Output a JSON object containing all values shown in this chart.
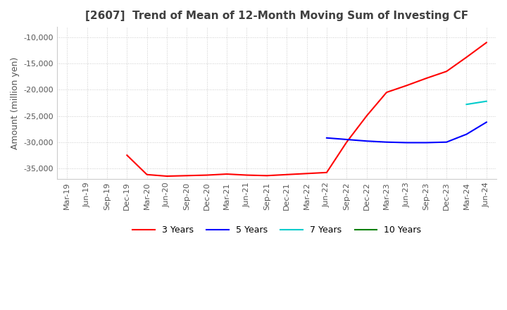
{
  "title": "[2607]  Trend of Mean of 12-Month Moving Sum of Investing CF",
  "ylabel": "Amount (million yen)",
  "ylim": [
    -37000,
    -8000
  ],
  "yticks": [
    -35000,
    -30000,
    -25000,
    -20000,
    -15000,
    -10000
  ],
  "legend_entries": [
    "3 Years",
    "5 Years",
    "7 Years",
    "10 Years"
  ],
  "legend_colors": [
    "#ff0000",
    "#0000ff",
    "#00cccc",
    "#008000"
  ],
  "xtick_labels": [
    "Mar-19",
    "Jun-19",
    "Sep-19",
    "Dec-19",
    "Mar-20",
    "Jun-20",
    "Sep-20",
    "Dec-20",
    "Mar-21",
    "Jun-21",
    "Sep-21",
    "Dec-21",
    "Mar-22",
    "Jun-22",
    "Sep-22",
    "Dec-22",
    "Mar-23",
    "Jun-23",
    "Sep-23",
    "Dec-23",
    "Mar-24",
    "Jun-24"
  ],
  "series_3y": {
    "y": [
      null,
      null,
      null,
      -32500,
      -36200,
      -36500,
      -36400,
      -36300,
      -36100,
      -36300,
      -36400,
      -36200,
      -36000,
      -35800,
      -30000,
      -25000,
      -20500,
      -19200,
      -17800,
      -16500,
      -13800,
      -11000
    ]
  },
  "series_5y": {
    "y": [
      null,
      null,
      null,
      null,
      null,
      null,
      null,
      null,
      null,
      null,
      null,
      null,
      null,
      -29200,
      -29500,
      -29800,
      -30000,
      -30100,
      -30100,
      -30000,
      -28500,
      -26200
    ]
  },
  "series_7y": {
    "y": [
      null,
      null,
      null,
      null,
      null,
      null,
      null,
      null,
      null,
      null,
      null,
      null,
      null,
      null,
      null,
      null,
      null,
      null,
      null,
      null,
      -22800,
      -22200
    ]
  },
  "series_10y": {
    "y": [
      null,
      null,
      null,
      null,
      null,
      null,
      null,
      null,
      null,
      null,
      null,
      null,
      null,
      null,
      null,
      null,
      null,
      null,
      null,
      null,
      null,
      null
    ]
  },
  "grid_color": "#cccccc",
  "grid_style": "dotted",
  "background_color": "#ffffff"
}
